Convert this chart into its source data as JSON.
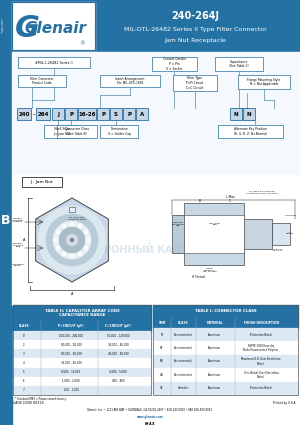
{
  "title_line1": "240-264J",
  "title_line2": "MIL-DTL-26482 Series II Type Filter Connector",
  "title_line3": "Jam Nut Receptacle",
  "header_bg": "#1a5276",
  "header_bg2": "#2471a3",
  "body_bg": "#ffffff",
  "sidebar_text": "B",
  "table1_title": "TABLE II: CAPACITOR ARRAY CODE\nCAPACITANCE RANGE",
  "table1_headers": [
    "CLASS",
    "P+CIRCUIT (pF)",
    "C+CIRCUIT (pF)"
  ],
  "table1_rows": [
    [
      "1*",
      "100,000 - 240,000",
      "50,000 - 120,000"
    ],
    [
      "2",
      "90,000 - 90,000",
      "34,000 - 45,000"
    ],
    [
      "3",
      "90,000 - 90,000",
      "45,000 - 90,000"
    ],
    [
      "4",
      "35,000 - 45,000",
      ""
    ],
    [
      "5",
      "8,000 - 12,000",
      "4,000 - 9,000"
    ],
    [
      "6",
      "1,000 - 2,000",
      "400 - 800"
    ],
    [
      "7",
      "100 - 1,000",
      ""
    ]
  ],
  "table1_note": "* Standard OMV = Please consult factory.",
  "table2_title": "TABLE I: CONNECTOR CLASS",
  "table2_headers": [
    "SYM",
    "CLASS",
    "MATERIAL",
    "FINISH DESCRIPTION"
  ],
  "table2_rows": [
    [
      "M",
      "Environmental",
      "Aluminum",
      "Electroless Nickel"
    ],
    [
      "MT",
      "Environmental",
      "Aluminum",
      "SSPFE 1000 Hour dry\nNickel fluorocarbon Polymer"
    ],
    [
      "MS",
      "Environmental",
      "Aluminum",
      "Maximum D.D. Over Electroless\nNickel"
    ],
    [
      "ZN",
      "Environmental",
      "Aluminum",
      "Zinc-Nickel Over Electroless\nNickel"
    ],
    [
      "H2",
      "Hermetic",
      "Aluminum",
      "Electroless Nickel"
    ]
  ],
  "cage_code": "CAGE CODE 06324",
  "footer_line1": "Glenair, Inc. • 1211 AIR WAY • GLENDALE, CA 91202-2497 • 818-247-6000 • FAX 818-500-9051",
  "footer_line2": "www.glenair.com",
  "page_code": "B-43",
  "drawing_label": "J - Jam Nut"
}
